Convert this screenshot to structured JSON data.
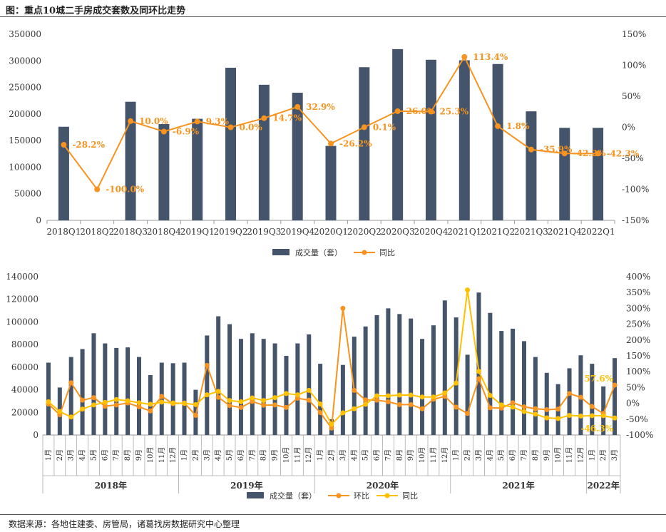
{
  "figure_title": "图：重点10城二手房成交套数及同环比走势",
  "source": "数据来源：各地住建委、房管局，诸葛找房数据研究中心整理",
  "colors": {
    "bar": "#44546a",
    "yoy_line_1": "#f7931e",
    "mom_line": "#f7931e",
    "yoy_line_2": "#ffc000",
    "label": "#f7931e"
  },
  "chart_data": [
    {
      "type": "bar",
      "categories": [
        "2018Q1",
        "2018Q2",
        "2018Q3",
        "2018Q4",
        "2019Q1",
        "2019Q2",
        "2019Q3",
        "2019Q4",
        "2020Q1",
        "2020Q2",
        "2020Q3",
        "2020Q4",
        "2021Q1",
        "2021Q2",
        "2021Q3",
        "2021Q4",
        "2022Q1"
      ],
      "series": [
        {
          "name": "成交量（套）",
          "kind": "bar",
          "axis": "left",
          "values": [
            176000,
            0,
            223000,
            181000,
            191000,
            287000,
            255000,
            240000,
            140000,
            288000,
            322000,
            302000,
            301000,
            294000,
            205000,
            174000,
            174000
          ]
        },
        {
          "name": "同比",
          "kind": "line",
          "axis": "right",
          "values": [
            -28.2,
            -100.0,
            10.0,
            -6.9,
            9.3,
            0.0,
            14.7,
            32.9,
            -26.2,
            0.1,
            26.0,
            25.3,
            113.4,
            1.8,
            -35.9,
            -42.2,
            -42.3
          ],
          "labels": [
            "-28.2%",
            "-100.0%",
            "10.0%",
            "-6.9%",
            "9.3%",
            "0.0%",
            "14.7%",
            "32.9%",
            "-26.2%",
            "0.1%",
            "26.0%",
            "25.3%",
            "113.4%",
            "1.8%",
            "-35.9%",
            "-42.2%",
            "-42.3%"
          ]
        }
      ],
      "ylim_left": [
        0,
        350000
      ],
      "ylim_right": [
        -150,
        150
      ],
      "left_ticks": [
        "0",
        "50000",
        "100000",
        "150000",
        "200000",
        "250000",
        "300000",
        "350000"
      ],
      "right_ticks": [
        "-150%",
        "-100%",
        "-50%",
        "0%",
        "50%",
        "100%",
        "150%"
      ],
      "legend": [
        "成交量（套）",
        "同比"
      ]
    },
    {
      "type": "bar",
      "months": [
        "1月",
        "2月",
        "3月",
        "4月",
        "5月",
        "6月",
        "7月",
        "8月",
        "9月",
        "10月",
        "11月",
        "12月"
      ],
      "years": [
        "2018年",
        "2019年",
        "2020年",
        "2021年",
        "2022年"
      ],
      "series": [
        {
          "name": "成交量（套）",
          "kind": "bar",
          "axis": "left",
          "values": [
            64000,
            42000,
            69000,
            76000,
            90000,
            81000,
            77000,
            77500,
            69000,
            53000,
            64000,
            63500,
            64000,
            40000,
            88000,
            105000,
            98000,
            85000,
            90000,
            85000,
            81000,
            70000,
            81000,
            89000,
            63000,
            14000,
            62000,
            87000,
            96000,
            106000,
            112000,
            107000,
            103000,
            85000,
            97000,
            119000,
            104000,
            71000,
            126000,
            108000,
            92000,
            94000,
            83000,
            69000,
            55000,
            45000,
            59000,
            70500,
            63000,
            43000,
            68000
          ]
        },
        {
          "name": "环比",
          "kind": "line",
          "axis": "right",
          "values": [
            -2,
            -36,
            65,
            10,
            18,
            -9,
            -5,
            1,
            -11,
            -24,
            22,
            -1,
            1,
            -38,
            120,
            19,
            -7,
            -13,
            6,
            -6,
            -5,
            -13,
            16,
            10,
            -29,
            -78,
            300,
            41,
            11,
            10,
            5,
            -4,
            -4,
            -17,
            13,
            22,
            -12,
            -32,
            78,
            -14,
            -15,
            2,
            -11,
            -17,
            -20,
            -18,
            31,
            19,
            -10,
            -32,
            57.6
          ],
          "last_label": "57.6%"
        },
        {
          "name": "同比",
          "kind": "line",
          "axis": "right",
          "values": [
            5,
            -26,
            -43,
            -18,
            -5,
            3,
            12,
            8,
            2,
            -3,
            4,
            1,
            0,
            -4,
            27,
            38,
            9,
            5,
            17,
            9,
            18,
            31,
            27,
            41,
            -2,
            -66,
            -30,
            -17,
            -3,
            24,
            24,
            26,
            26,
            20,
            20,
            33,
            64,
            358,
            101,
            25,
            -5,
            -12,
            -26,
            -34,
            -46,
            -48,
            -38,
            -40,
            -39,
            -39,
            -46.3
          ],
          "last_label": "-46.3%"
        }
      ],
      "ylim_left": [
        0,
        140000
      ],
      "ylim_right": [
        -100,
        400
      ],
      "left_ticks": [
        "0",
        "20000",
        "40000",
        "60000",
        "80000",
        "100000",
        "120000",
        "140000"
      ],
      "right_ticks": [
        "-100%",
        "-50%",
        "0%",
        "50%",
        "100%",
        "150%",
        "200%",
        "250%",
        "300%",
        "350%",
        "400%"
      ],
      "legend": [
        "成交量（套）",
        "环比",
        "同比"
      ]
    }
  ]
}
